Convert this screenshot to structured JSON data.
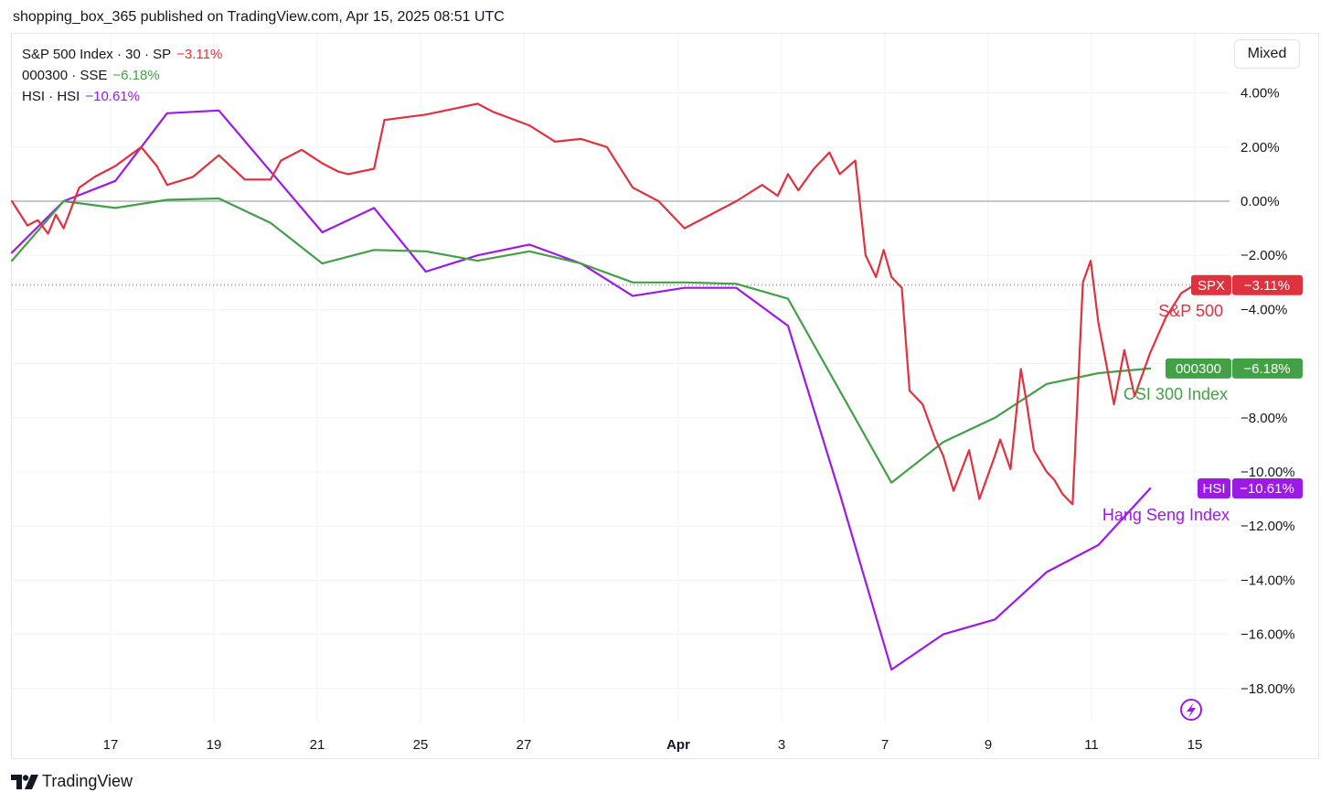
{
  "header": {
    "published_text": "shopping_box_365 published on TradingView.com, Apr 15, 2025 08:51 UTC"
  },
  "legend": [
    {
      "symbol": "S&P 500 Index · 30 · SP",
      "change": "−3.11%",
      "color": "#e0323e"
    },
    {
      "symbol": "000300 · SSE",
      "change": "−6.18%",
      "color": "#43a047"
    },
    {
      "symbol": "HSI · HSI",
      "change": "−10.61%",
      "color": "#9c19e8"
    }
  ],
  "toolbar": {
    "scale_mode": "Mixed"
  },
  "branding": {
    "logo_text": "TradingView"
  },
  "colors": {
    "spx": "#e0323e",
    "csi": "#43a047",
    "hsi": "#9c19e8",
    "zero_line": "#b2b5be",
    "grid": "#f0f3fa"
  },
  "chart_data": {
    "type": "line",
    "yunit": "%",
    "y_ticks": [
      "4.00%",
      "2.00%",
      "0.00%",
      "−2.00%",
      "−4.00%",
      "−6.00%",
      "−8.00%",
      "−10.00%",
      "−12.00%",
      "−14.00%",
      "−16.00%",
      "−18.00%"
    ],
    "x_ticks": [
      "17",
      "19",
      "21",
      "25",
      "27",
      "Apr",
      "3",
      "7",
      "9",
      "11",
      "15"
    ],
    "series": [
      {
        "name": "S&P 500",
        "symbol": "SPX",
        "last_value": "−3.11%",
        "color": "#e0323e",
        "x": [
          0,
          0.3,
          0.5,
          0.7,
          0.85,
          1.0,
          1.3,
          1.6,
          2.0,
          2.5,
          2.8,
          3.0,
          3.5,
          4.0,
          4.5,
          5.0,
          5.2,
          5.6,
          6.0,
          6.3,
          6.5,
          7.0,
          7.2,
          8.0,
          9.0,
          9.3,
          10.0,
          10.5,
          11.0,
          11.5,
          12.0,
          12.5,
          13.0,
          14.0,
          14.5,
          14.8,
          15.0,
          15.2,
          15.5,
          15.8,
          16.0,
          16.3,
          16.5,
          16.7,
          16.85,
          17.0,
          17.2,
          17.35,
          17.6,
          17.85,
          18.0,
          18.2,
          18.5,
          18.7,
          19.0,
          19.1,
          19.3,
          19.5,
          19.6,
          19.75,
          20.0,
          20.15,
          20.3,
          20.5,
          20.7,
          20.85,
          21.0,
          21.3,
          21.5,
          21.7,
          22.0,
          22.3,
          22.6,
          22.85
        ],
        "values": [
          0.0,
          -0.9,
          -0.7,
          -1.2,
          -0.5,
          -1.0,
          0.5,
          0.9,
          1.3,
          2.0,
          1.3,
          0.6,
          0.9,
          1.7,
          0.8,
          0.8,
          1.5,
          1.9,
          1.4,
          1.1,
          1.0,
          1.2,
          3.0,
          3.2,
          3.6,
          3.3,
          2.8,
          2.2,
          2.3,
          2.0,
          0.5,
          0.0,
          -1.0,
          0.0,
          0.6,
          0.2,
          1.0,
          0.4,
          1.2,
          1.8,
          1.0,
          1.5,
          -2.0,
          -2.8,
          -1.8,
          -2.8,
          -3.2,
          -7.0,
          -7.5,
          -8.8,
          -9.4,
          -10.7,
          -9.2,
          -11.0,
          -9.4,
          -8.8,
          -9.9,
          -6.2,
          -7.3,
          -9.2,
          -10.0,
          -10.3,
          -10.8,
          -11.2,
          -3.0,
          -2.2,
          -4.5,
          -7.5,
          -5.5,
          -7.2,
          -5.6,
          -4.3,
          -3.4,
          -3.1
        ]
      },
      {
        "name": "CSI 300 Index",
        "symbol": "000300",
        "last_value": "−6.18%",
        "color": "#43a047",
        "x": [
          0,
          1,
          2,
          3,
          4,
          5,
          6,
          7,
          8,
          9,
          10,
          11,
          12,
          13,
          14,
          15,
          16,
          17,
          18,
          19,
          20,
          21,
          22
        ],
        "values": [
          -2.2,
          0.0,
          -0.25,
          0.05,
          0.1,
          -0.8,
          -2.3,
          -1.8,
          -1.85,
          -2.2,
          -1.85,
          -2.3,
          -3.0,
          -3.0,
          -3.05,
          -3.6,
          -7.0,
          -10.4,
          -8.9,
          -8.0,
          -6.75,
          -6.35,
          -6.18
        ]
      },
      {
        "name": "Hang Seng Index",
        "symbol": "HSI",
        "last_value": "−10.61%",
        "color": "#9c19e8",
        "x": [
          0,
          1,
          2,
          3,
          4,
          5,
          6,
          7,
          8,
          9,
          10,
          11,
          12,
          13,
          14,
          15,
          16,
          17,
          18,
          19,
          20,
          21,
          22
        ],
        "values": [
          -1.9,
          0.0,
          0.75,
          3.25,
          3.35,
          1.1,
          -1.15,
          -0.25,
          -2.6,
          -2.0,
          -1.6,
          -2.3,
          -3.5,
          -3.2,
          -3.2,
          -4.6,
          -10.8,
          -17.3,
          -16.0,
          -15.45,
          -13.7,
          -12.7,
          -10.61
        ]
      }
    ]
  }
}
